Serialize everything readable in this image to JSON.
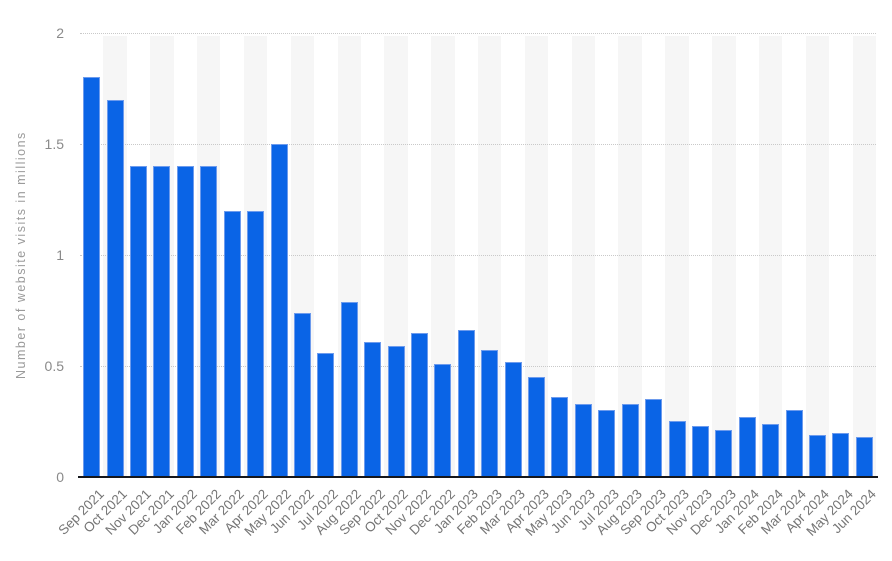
{
  "chart_data": {
    "type": "bar",
    "title": "",
    "xlabel": "",
    "ylabel": "Number of website visits in millions",
    "ylim": [
      0,
      2
    ],
    "yticks": [
      0,
      0.5,
      1,
      1.5,
      2
    ],
    "ytick_labels": [
      "0",
      "0.5",
      "1",
      "1.5",
      "2"
    ],
    "grid": "horizontal-dotted",
    "legend": "none",
    "plot_background": "alternating-column-bands",
    "categories": [
      "Sep 2021",
      "Oct 2021",
      "Nov 2021",
      "Dec 2021",
      "Jan 2022",
      "Feb 2022",
      "Mar 2022",
      "Apr 2022",
      "May 2022",
      "Jun 2022",
      "Jul 2022",
      "Aug 2022",
      "Sep 2022",
      "Oct 2022",
      "Nov 2022",
      "Dec 2022",
      "Jan 2023",
      "Feb 2023",
      "Mar 2023",
      "Apr 2023",
      "May 2023",
      "Jun 2023",
      "Jul 2023",
      "Aug 2023",
      "Sep 2023",
      "Oct 2023",
      "Nov 2023",
      "Dec 2023",
      "Jan 2024",
      "Feb 2024",
      "Mar 2024",
      "Apr 2024",
      "May 2024",
      "Jun 2024"
    ],
    "values": [
      1.8,
      1.7,
      1.4,
      1.4,
      1.4,
      1.4,
      1.2,
      1.2,
      1.5,
      0.74,
      0.56,
      0.79,
      0.61,
      0.59,
      0.65,
      0.51,
      0.66,
      0.57,
      0.52,
      0.45,
      0.36,
      0.33,
      0.3,
      0.33,
      0.35,
      0.25,
      0.23,
      0.21,
      0.27,
      0.24,
      0.3,
      0.19,
      0.2,
      0.18
    ],
    "colors": {
      "bar_fill": "#0a64e6",
      "bar_border": "#6d9bed",
      "band_fill": "#f6f6f6",
      "gridline": "#c9c9c9",
      "axis_line": "#15171c",
      "tick_text": "#8a8a8a",
      "category_text": "#757575",
      "axis_title_text": "#9a9a9a"
    }
  }
}
